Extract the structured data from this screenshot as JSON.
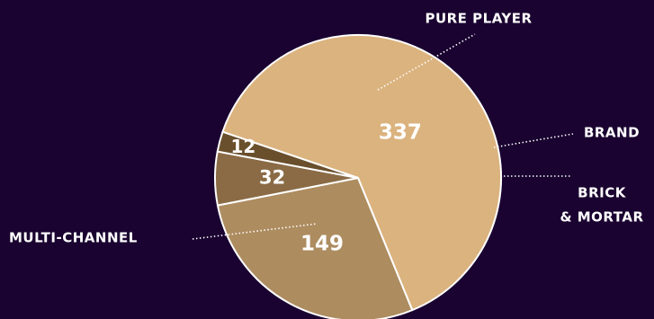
{
  "chart_data": {
    "type": "pie",
    "categories": [
      "MULTI-CHANNEL",
      "PURE PLAYER",
      "BRAND",
      "BRICK & MORTAR"
    ],
    "values": [
      337,
      149,
      32,
      12
    ],
    "colors": [
      "#dbb37f",
      "#ad8c60",
      "#8a6b45",
      "#6a4f2d"
    ],
    "background": "#1a0330",
    "legend": "none",
    "category_label_lines": [
      [
        "MULTI-CHANNEL"
      ],
      [
        "PURE PLAYER"
      ],
      [
        "BRAND"
      ],
      [
        "BRICK",
        "& MORTAR"
      ]
    ]
  }
}
